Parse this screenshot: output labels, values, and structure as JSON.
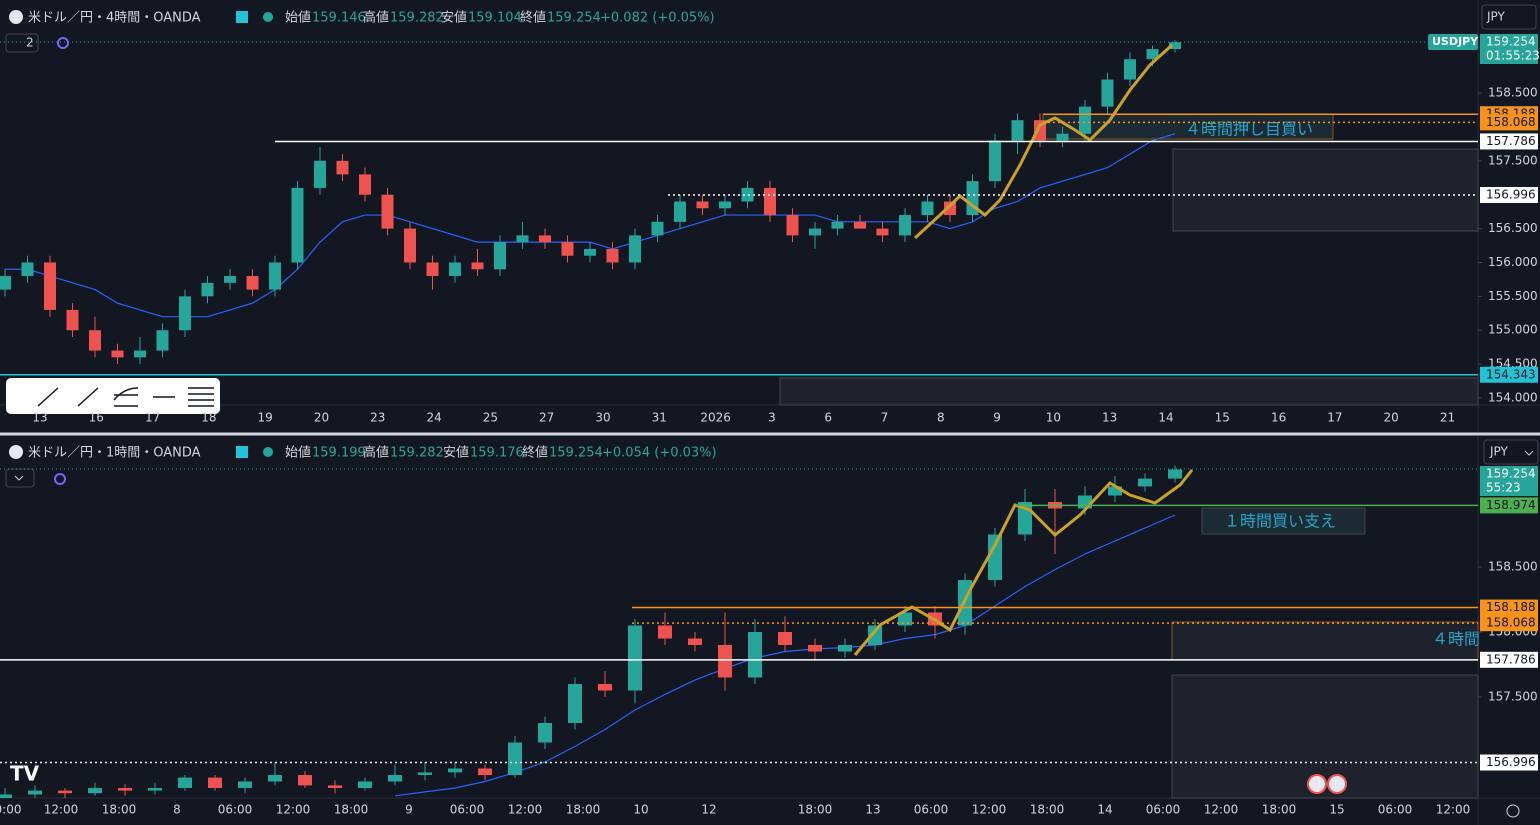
{
  "panels": [
    {
      "header": {
        "symbol": "米ドル／円・4時間・OANDA",
        "open_label": "始値",
        "open": "159.146",
        "high_label": "高値",
        "high": "159.282",
        "low_label": "安値",
        "low": "159.104",
        "close_label": "終値",
        "close": "159.254",
        "change": "+0.082 (+0.05%)"
      },
      "currency": "JPY",
      "indicator_count": "2",
      "symbol_tag": "USDJPY",
      "last_price": 159.254,
      "countdown": "01:55:23",
      "yticks": [
        {
          "value": 158.5,
          "label": "158.500"
        },
        {
          "value": 157.5,
          "label": "157.500"
        },
        {
          "value": 156.5,
          "label": "156.500"
        },
        {
          "value": 156,
          "label": "156.000"
        },
        {
          "value": 155.5,
          "label": "155.500"
        },
        {
          "value": 155,
          "label": "155.000"
        },
        {
          "value": 154.5,
          "label": "154.500"
        },
        {
          "value": 154,
          "label": "154.000"
        }
      ],
      "levels": [
        {
          "value": 158.188,
          "color": "#f7931a"
        },
        {
          "value": 158.068,
          "color": "#f7931a"
        },
        {
          "value": 157.786,
          "color": "#ffffff"
        },
        {
          "value": 156.996,
          "color": "#ffffff"
        },
        {
          "value": 154.343,
          "color": "#22c3d6"
        }
      ],
      "time_labels": [
        "13",
        "16",
        "17",
        "18",
        "19",
        "20",
        "23",
        "24",
        "25",
        "27",
        "30",
        "31",
        "2026",
        "3",
        "6",
        "7",
        "8",
        "9",
        "10",
        "13",
        "14",
        "15",
        "16",
        "17",
        "20",
        "21"
      ],
      "annotation": "４時間押し目買い",
      "candles": [
        [
          155.6,
          155.9,
          155.5,
          155.8
        ],
        [
          155.8,
          156.1,
          155.7,
          156.0
        ],
        [
          156.0,
          156.1,
          155.2,
          155.3
        ],
        [
          155.3,
          155.4,
          154.9,
          155.0
        ],
        [
          155.0,
          155.2,
          154.6,
          154.7
        ],
        [
          154.7,
          154.8,
          154.5,
          154.6
        ],
        [
          154.6,
          154.9,
          154.5,
          154.7
        ],
        [
          154.7,
          155.1,
          154.6,
          155.0
        ],
        [
          155.0,
          155.6,
          154.9,
          155.5
        ],
        [
          155.5,
          155.8,
          155.4,
          155.7
        ],
        [
          155.7,
          155.9,
          155.6,
          155.8
        ],
        [
          155.8,
          155.9,
          155.5,
          155.6
        ],
        [
          155.6,
          156.1,
          155.5,
          156.0
        ],
        [
          156.0,
          157.2,
          155.9,
          157.1
        ],
        [
          157.1,
          157.7,
          157.0,
          157.5
        ],
        [
          157.5,
          157.6,
          157.2,
          157.3
        ],
        [
          157.3,
          157.4,
          156.9,
          157.0
        ],
        [
          157.0,
          157.1,
          156.4,
          156.5
        ],
        [
          156.5,
          156.6,
          155.9,
          156.0
        ],
        [
          156.0,
          156.1,
          155.6,
          155.8
        ],
        [
          155.8,
          156.1,
          155.7,
          156.0
        ],
        [
          156.0,
          156.2,
          155.8,
          155.9
        ],
        [
          155.9,
          156.4,
          155.8,
          156.3
        ],
        [
          156.3,
          156.6,
          156.2,
          156.4
        ],
        [
          156.4,
          156.5,
          156.2,
          156.3
        ],
        [
          156.3,
          156.4,
          156.0,
          156.1
        ],
        [
          156.1,
          156.3,
          156.0,
          156.2
        ],
        [
          156.2,
          156.3,
          155.9,
          156.0
        ],
        [
          156.0,
          156.5,
          155.9,
          156.4
        ],
        [
          156.4,
          156.7,
          156.3,
          156.6
        ],
        [
          156.6,
          157.0,
          156.5,
          156.9
        ],
        [
          156.9,
          157.0,
          156.7,
          156.8
        ],
        [
          156.8,
          157.0,
          156.7,
          156.9
        ],
        [
          156.9,
          157.2,
          156.8,
          157.1
        ],
        [
          157.1,
          157.2,
          156.6,
          156.7
        ],
        [
          156.7,
          156.8,
          156.3,
          156.4
        ],
        [
          156.4,
          156.6,
          156.2,
          156.5
        ],
        [
          156.5,
          156.7,
          156.4,
          156.6
        ],
        [
          156.6,
          156.7,
          156.5,
          156.5
        ],
        [
          156.5,
          156.6,
          156.3,
          156.4
        ],
        [
          156.4,
          156.8,
          156.3,
          156.7
        ],
        [
          156.7,
          157.0,
          156.6,
          156.9
        ],
        [
          156.9,
          157.0,
          156.6,
          156.7
        ],
        [
          156.7,
          157.3,
          156.6,
          157.2
        ],
        [
          157.2,
          157.9,
          157.1,
          157.8
        ],
        [
          157.8,
          158.2,
          157.6,
          158.1
        ],
        [
          158.1,
          158.2,
          157.7,
          157.8
        ],
        [
          157.8,
          158.0,
          157.7,
          157.9
        ],
        [
          157.9,
          158.4,
          157.8,
          158.3
        ],
        [
          158.3,
          158.8,
          158.2,
          158.7
        ],
        [
          158.7,
          159.1,
          158.6,
          159.0
        ],
        [
          159.0,
          159.2,
          158.9,
          159.15
        ],
        [
          159.15,
          159.28,
          159.1,
          159.25
        ]
      ],
      "ma": [
        155.9,
        155.9,
        155.8,
        155.7,
        155.6,
        155.4,
        155.3,
        155.2,
        155.2,
        155.2,
        155.3,
        155.4,
        155.6,
        155.9,
        156.3,
        156.6,
        156.7,
        156.7,
        156.6,
        156.5,
        156.4,
        156.3,
        156.3,
        156.3,
        156.3,
        156.3,
        156.3,
        156.2,
        156.3,
        156.4,
        156.5,
        156.6,
        156.7,
        156.7,
        156.7,
        156.7,
        156.7,
        156.6,
        156.6,
        156.6,
        156.6,
        156.6,
        156.5,
        156.6,
        156.8,
        156.9,
        157.1,
        157.2,
        157.3,
        157.4,
        157.6,
        157.8,
        157.9
      ]
    },
    {
      "header": {
        "symbol": "米ドル／円・1時間・OANDA",
        "open_label": "始値",
        "open": "159.199",
        "high_label": "高値",
        "high": "159.282",
        "low_label": "安値",
        "low": "159.176",
        "close_label": "終値",
        "close": "159.254",
        "change": "+0.054 (+0.03%)"
      },
      "currency": "JPY",
      "last_price": 159.254,
      "countdown": "55:23",
      "yticks": [
        {
          "value": 158.5,
          "label": "158.500"
        },
        {
          "value": 158,
          "label": "158.000"
        },
        {
          "value": 157.5,
          "label": "157.500"
        }
      ],
      "levels": [
        {
          "value": 158.974,
          "color": "#4caf50"
        },
        {
          "value": 158.188,
          "color": "#f7931a"
        },
        {
          "value": 158.068,
          "color": "#f7931a"
        },
        {
          "value": 157.786,
          "color": "#ffffff"
        },
        {
          "value": 156.996,
          "color": "#ffffff"
        }
      ],
      "time_labels": [
        "0:00",
        "12:00",
        "18:00",
        "8",
        "06:00",
        "12:00",
        "18:00",
        "9",
        "06:00",
        "12:00",
        "18:00",
        "10",
        "12",
        "18:00",
        "13",
        "06:00",
        "12:00",
        "18:00",
        "14",
        "06:00",
        "12:00",
        "18:00",
        "15",
        "06:00",
        "12:00"
      ],
      "annotation": "１時間買い支え",
      "annotation2": "４時間",
      "candles": [
        [
          156.72,
          156.8,
          156.7,
          156.75
        ],
        [
          156.75,
          156.82,
          156.72,
          156.78
        ],
        [
          156.78,
          156.8,
          156.72,
          156.76
        ],
        [
          156.76,
          156.84,
          156.74,
          156.8
        ],
        [
          156.8,
          156.83,
          156.74,
          156.78
        ],
        [
          156.78,
          156.84,
          156.75,
          156.8
        ],
        [
          156.8,
          156.9,
          156.78,
          156.88
        ],
        [
          156.88,
          156.9,
          156.78,
          156.8
        ],
        [
          156.8,
          156.88,
          156.76,
          156.85
        ],
        [
          156.85,
          157.0,
          156.82,
          156.9
        ],
        [
          156.9,
          156.93,
          156.8,
          156.82
        ],
        [
          156.82,
          156.86,
          156.76,
          156.8
        ],
        [
          156.8,
          156.88,
          156.78,
          156.85
        ],
        [
          156.85,
          156.98,
          156.82,
          156.9
        ],
        [
          156.9,
          157.0,
          156.86,
          156.92
        ],
        [
          156.92,
          157.0,
          156.88,
          156.95
        ],
        [
          156.95,
          156.98,
          156.86,
          156.9
        ],
        [
          156.9,
          157.2,
          156.88,
          157.15
        ],
        [
          157.15,
          157.35,
          157.1,
          157.3
        ],
        [
          157.3,
          157.65,
          157.25,
          157.6
        ],
        [
          157.6,
          157.7,
          157.5,
          157.55
        ],
        [
          157.55,
          158.1,
          157.45,
          158.05
        ],
        [
          158.05,
          158.15,
          157.9,
          157.95
        ],
        [
          157.95,
          158.0,
          157.85,
          157.9
        ],
        [
          157.9,
          158.15,
          157.55,
          157.65
        ],
        [
          157.65,
          158.1,
          157.6,
          158.0
        ],
        [
          158.0,
          158.12,
          157.85,
          157.9
        ],
        [
          157.9,
          157.95,
          157.78,
          157.85
        ],
        [
          157.85,
          157.95,
          157.8,
          157.9
        ],
        [
          157.9,
          158.1,
          157.86,
          158.05
        ],
        [
          158.05,
          158.2,
          158.0,
          158.15
        ],
        [
          158.15,
          158.2,
          157.95,
          158.05
        ],
        [
          158.05,
          158.45,
          157.98,
          158.4
        ],
        [
          158.4,
          158.8,
          158.35,
          158.75
        ],
        [
          158.75,
          159.1,
          158.7,
          159.0
        ],
        [
          159.0,
          159.1,
          158.6,
          158.95
        ],
        [
          158.95,
          159.12,
          158.9,
          159.05
        ],
        [
          159.05,
          159.2,
          159.0,
          159.12
        ],
        [
          159.12,
          159.22,
          159.08,
          159.18
        ],
        [
          159.18,
          159.28,
          159.15,
          159.25
        ]
      ],
      "ma": [
        null,
        null,
        null,
        null,
        null,
        null,
        null,
        null,
        null,
        null,
        null,
        null,
        null,
        156.74,
        156.77,
        156.8,
        156.85,
        156.92,
        157.0,
        157.12,
        157.25,
        157.4,
        157.52,
        157.63,
        157.72,
        157.8,
        157.85,
        157.87,
        157.88,
        157.9,
        157.95,
        157.98,
        158.05,
        158.2,
        158.35,
        158.48,
        158.6,
        158.7,
        158.8,
        158.9
      ]
    }
  ],
  "up_color": "#26a69a",
  "down_color": "#ef5350",
  "ma_color": "#2962ff",
  "last_color": "#26a69a"
}
